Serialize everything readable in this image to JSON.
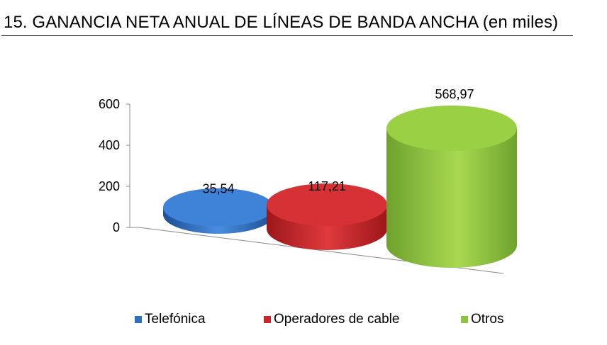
{
  "header": {
    "title": "15. GANANCIA NETA ANUAL DE LÍNEAS DE BANDA ANCHA (en miles)"
  },
  "chart_data": {
    "type": "bar",
    "style": "3d-cylinder",
    "title": "15. GANANCIA NETA ANUAL DE LÍNEAS DE BANDA ANCHA (en miles)",
    "categories": [
      "Telefónica",
      "Operadores de cable",
      "Otros"
    ],
    "values": [
      35.54,
      117.21,
      568.97
    ],
    "value_labels": [
      "35,54",
      "117,21",
      "568,97"
    ],
    "colors": [
      "#2e6fc0",
      "#c9262b",
      "#8cc63f"
    ],
    "xlabel": "",
    "ylabel": "",
    "ylim": [
      0,
      600
    ],
    "yticks": [
      0,
      200,
      400,
      600
    ],
    "grid": false,
    "legend_position": "bottom"
  }
}
